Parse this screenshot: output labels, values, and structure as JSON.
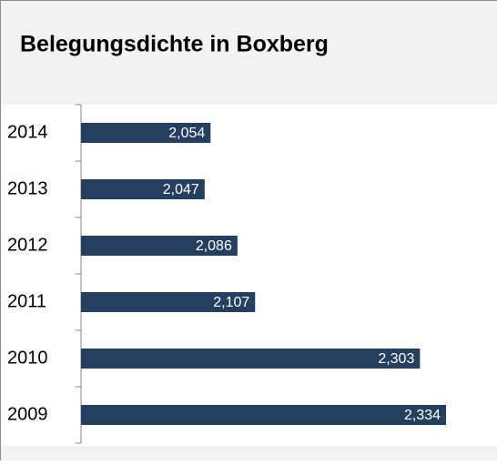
{
  "chart_data": {
    "type": "bar",
    "orientation": "horizontal",
    "title": "Belegungsdichte in Boxberg",
    "categories": [
      "2009",
      "2010",
      "2011",
      "2012",
      "2013",
      "2014"
    ],
    "values": [
      2.334,
      2.303,
      2.107,
      2.086,
      2.047,
      2.054
    ],
    "value_labels": [
      "2,334",
      "2,303",
      "2,107",
      "2,086",
      "2,047",
      "2,054"
    ],
    "color": "#243f60",
    "xlim": [
      1.9,
      2.4
    ]
  }
}
